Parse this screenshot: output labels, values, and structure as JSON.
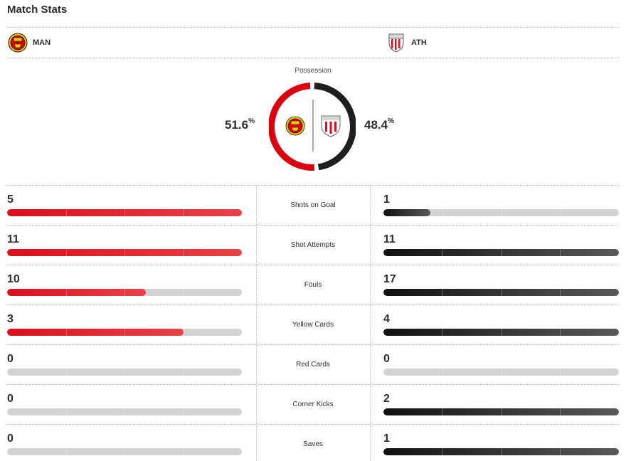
{
  "header": {
    "title": "Match Stats"
  },
  "teams": {
    "home": {
      "abbr": "MAN",
      "logo": "manchester-united-crest",
      "color": "#da020e"
    },
    "away": {
      "abbr": "ATH",
      "logo": "athletic-club-crest",
      "color": "#1a1a1a"
    }
  },
  "possession": {
    "label": "Possession",
    "home_pct": "51.6",
    "away_pct": "48.4",
    "unit": "%",
    "home_value": 51.6,
    "away_value": 48.4
  },
  "stats": [
    {
      "label": "Shots on Goal",
      "home": "5",
      "away": "1",
      "home_fill": 1.0,
      "away_fill": 0.2
    },
    {
      "label": "Shot Attempts",
      "home": "11",
      "away": "11",
      "home_fill": 1.0,
      "away_fill": 1.0
    },
    {
      "label": "Fouls",
      "home": "10",
      "away": "17",
      "home_fill": 0.59,
      "away_fill": 1.0
    },
    {
      "label": "Yellow Cards",
      "home": "3",
      "away": "4",
      "home_fill": 0.75,
      "away_fill": 1.0
    },
    {
      "label": "Red Cards",
      "home": "0",
      "away": "0",
      "home_fill": 0,
      "away_fill": 0
    },
    {
      "label": "Corner Kicks",
      "home": "0",
      "away": "2",
      "home_fill": 0,
      "away_fill": 1.0
    },
    {
      "label": "Saves",
      "home": "0",
      "away": "1",
      "home_fill": 0,
      "away_fill": 1.0
    }
  ]
}
